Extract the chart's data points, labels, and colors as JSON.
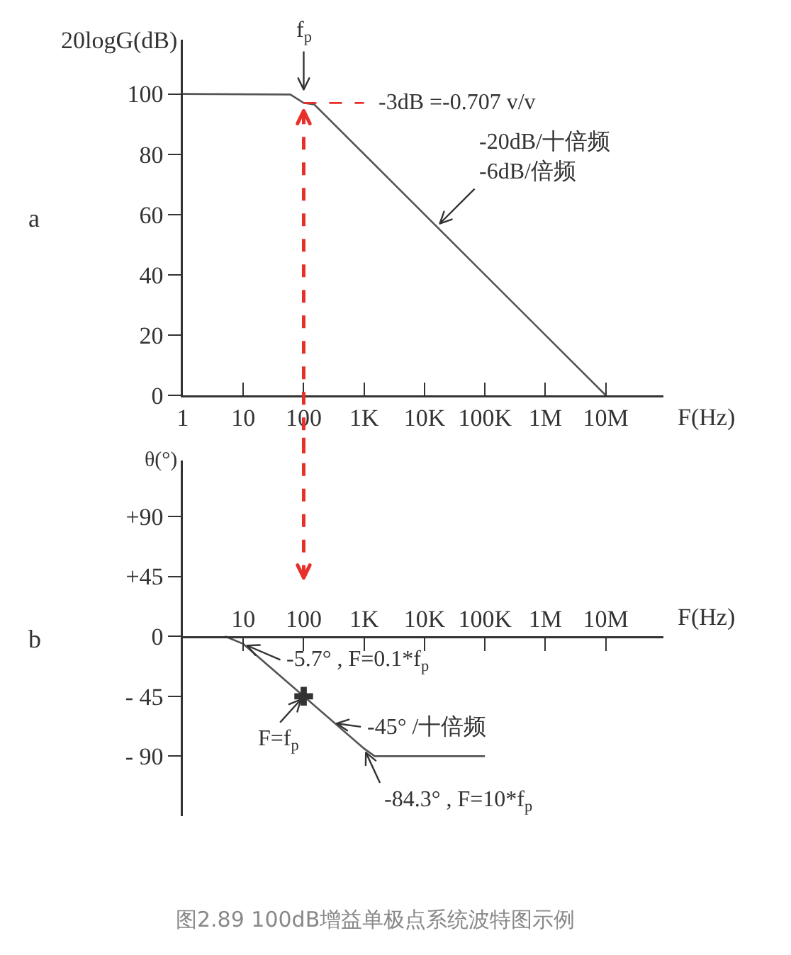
{
  "chart_data": [
    {
      "type": "line",
      "title": "a",
      "ylabel": "20logG(dB)",
      "xlabel": "F(Hz)",
      "log": "x",
      "xlim": [
        1,
        90000000
      ],
      "xticks": [
        1,
        10,
        100,
        {
          "value": 1000,
          "label": "1K"
        },
        {
          "value": 10000,
          "label": "10K"
        },
        {
          "value": 100000,
          "label": "100K"
        },
        {
          "value": 1000000,
          "label": "1M"
        },
        {
          "value": 10000000,
          "label": "10M"
        }
      ],
      "ylim": [
        0,
        118
      ],
      "yticks": [
        0,
        20,
        40,
        60,
        80,
        100
      ],
      "series": [
        {
          "color": "#555555",
          "x": [
            1,
            60,
            100,
            150,
            10000000
          ],
          "values": [
            100,
            99.8,
            97,
            96.5,
            0
          ]
        },
        {
          "color": "#e8302a",
          "line_style": "dashed",
          "x": [
            100,
            1000
          ],
          "values": [
            97,
            97
          ]
        }
      ],
      "annotations": [
        {
          "text": "f$_{p}$",
          "x": 100,
          "y": 100
        },
        {
          "text": "-3dB =-0.707 v/v",
          "x": 1000,
          "y": 97
        },
        {
          "text": "-20dB/十倍频\n-6dB/倍频",
          "x": 16000,
          "y": 56
        }
      ],
      "ref_lines": [
        {
          "axis": "x",
          "value": 100,
          "color": "#e8302a",
          "line_style": "dashed"
        }
      ]
    },
    {
      "type": "line",
      "title": "b",
      "ylabel": "θ(°)",
      "xlabel": "F(Hz)",
      "log": "x",
      "xlim": [
        1,
        90000000
      ],
      "xticks": [
        10,
        100,
        {
          "value": 1000,
          "label": "1K"
        },
        {
          "value": 10000,
          "label": "10K"
        },
        {
          "value": 100000,
          "label": "100K"
        },
        {
          "value": 1000000,
          "label": "1M"
        },
        {
          "value": 10000000,
          "label": "10M"
        }
      ],
      "ylim": [
        -135,
        132
      ],
      "yticks": [
        {
          "value": 90,
          "label": "+90"
        },
        {
          "value": 45,
          "label": "+45"
        },
        0,
        {
          "value": -45,
          "label": "- 45"
        },
        {
          "value": -90,
          "label": "- 90"
        }
      ],
      "series": [
        {
          "color": "#555555",
          "x": [
            5,
            10,
            100,
            1000,
            1500,
            100000
          ],
          "values": [
            0,
            -5.7,
            -45,
            -84.3,
            -90,
            -90
          ]
        },
        {
          "type": "scatter",
          "marker": "cross",
          "color": "#333333",
          "x": [
            100
          ],
          "values": [
            -45
          ]
        }
      ],
      "annotations": [
        {
          "text": "-5.7° , F=0.1*f$_{p}$",
          "x": 10,
          "y": -5.7
        },
        {
          "text": "F=f$_{p}$",
          "x": 100,
          "y": -45
        },
        {
          "text": "-45° /十倍频",
          "x": 300,
          "y": -65
        },
        {
          "text": "-84.3° , F=10*f$_{p}$",
          "x": 1000,
          "y": -84.3
        },
        "图2.89 100dB增益单极点系统波特图示例"
      ],
      "ref_lines": [
        {
          "axis": "x",
          "value": 100,
          "color": "#e8302a",
          "line_style": "dashed"
        }
      ]
    }
  ]
}
